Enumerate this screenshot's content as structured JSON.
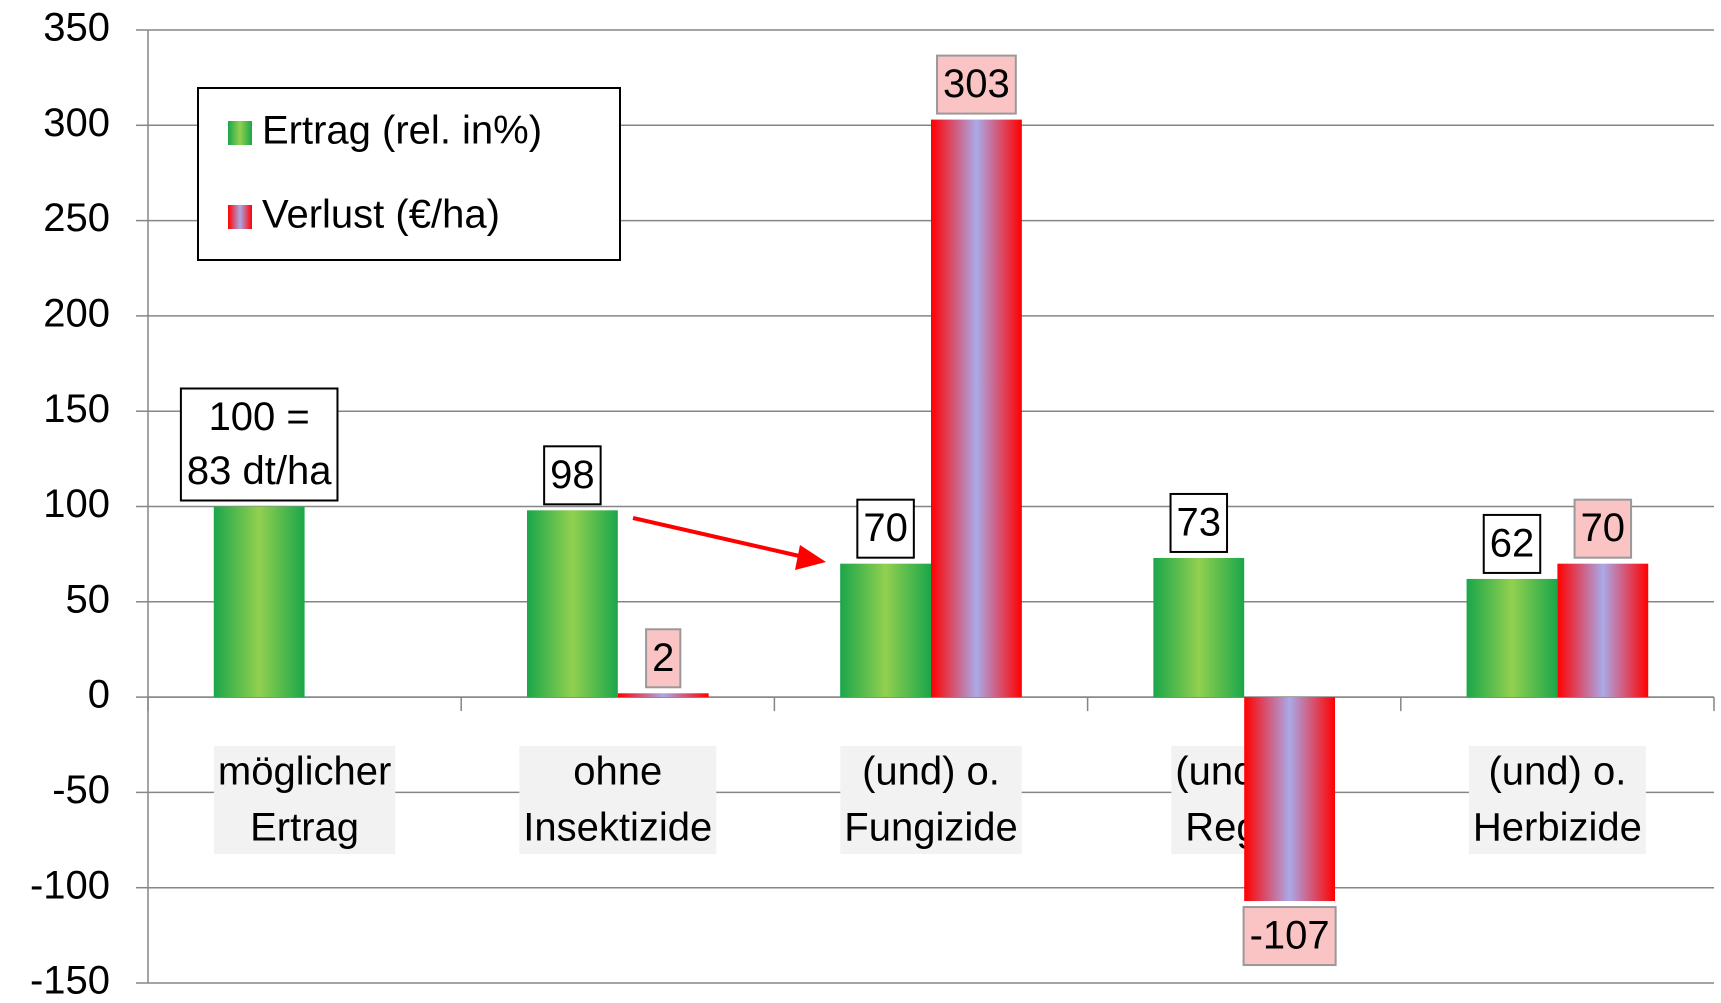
{
  "chart_data": {
    "type": "bar",
    "categories": [
      [
        "möglicher",
        "Ertrag"
      ],
      [
        "ohne",
        "Insektizide"
      ],
      [
        "(und) o.",
        "Fungizide"
      ],
      [
        "(und) o.",
        "Regler"
      ],
      [
        "(und) o.",
        "Herbizide"
      ]
    ],
    "series": [
      {
        "name": "Ertrag (rel. in%)",
        "color": [
          "#1aa64a",
          "#92d050"
        ],
        "values": [
          100,
          98,
          70,
          73,
          62
        ],
        "value_labels": [
          [
            "100 =",
            "83 dt/ha"
          ],
          "98",
          "70",
          "73",
          "62"
        ]
      },
      {
        "name": "Verlust (€/ha)",
        "color": [
          "#ff0000",
          "#aaa9e8"
        ],
        "values": [
          null,
          2,
          303,
          -107,
          70
        ]
      }
    ],
    "ylim": [
      -150,
      350
    ],
    "yticks": [
      -150,
      -100,
      -50,
      0,
      50,
      100,
      150,
      200,
      250,
      300,
      350
    ],
    "grid": true,
    "legend": "upper left"
  }
}
